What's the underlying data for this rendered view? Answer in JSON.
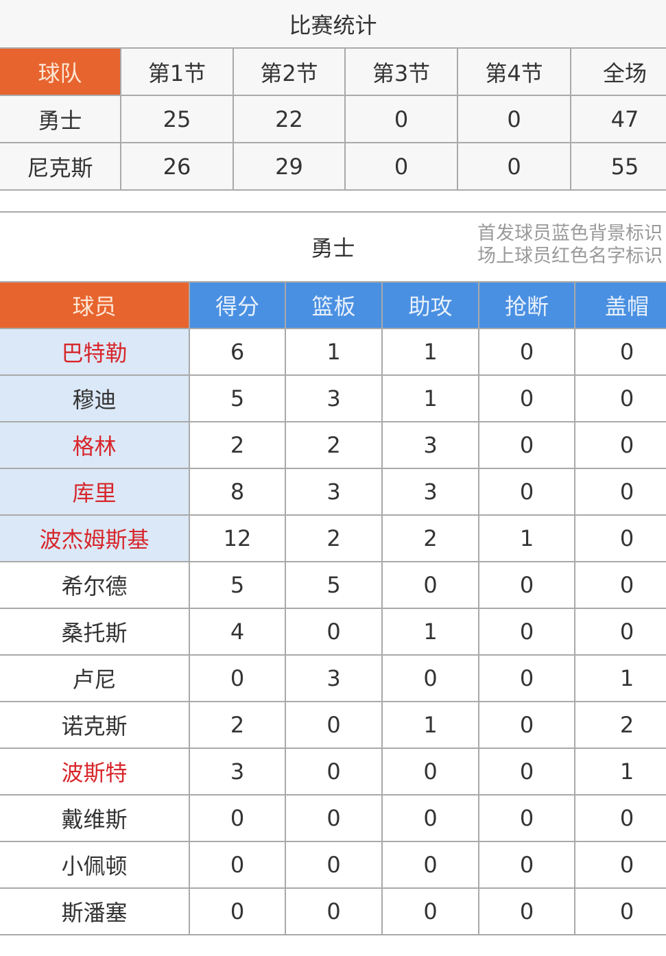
{
  "title": "比赛统计",
  "team_table": {
    "headers": [
      "球队",
      "第1节",
      "第2节",
      "第3节",
      "第4节",
      "全场"
    ],
    "rows": [
      {
        "team": "勇士",
        "scores": [
          "25",
          "22",
          "0",
          "0",
          "47"
        ]
      },
      {
        "team": "尼克斯",
        "scores": [
          "26",
          "29",
          "0",
          "0",
          "55"
        ]
      }
    ]
  },
  "player_section": {
    "team": "勇士",
    "legend_line1": "首发球员蓝色背景标识",
    "legend_line2": "场上球员红色名字标识",
    "headers": [
      "球员",
      "得分",
      "篮板",
      "助攻",
      "抢断",
      "盖帽"
    ],
    "colors": {
      "orange": "#e8642f",
      "blue": "#4a90e2",
      "starter_bg": "#dbe8f7",
      "on_court": "#d7262b"
    },
    "players": [
      {
        "name": "巴特勒",
        "starter": true,
        "on_court": true,
        "stats": [
          "6",
          "1",
          "1",
          "0",
          "0"
        ]
      },
      {
        "name": "穆迪",
        "starter": true,
        "on_court": false,
        "stats": [
          "5",
          "3",
          "1",
          "0",
          "0"
        ]
      },
      {
        "name": "格林",
        "starter": true,
        "on_court": true,
        "stats": [
          "2",
          "2",
          "3",
          "0",
          "0"
        ]
      },
      {
        "name": "库里",
        "starter": true,
        "on_court": true,
        "stats": [
          "8",
          "3",
          "3",
          "0",
          "0"
        ]
      },
      {
        "name": "波杰姆斯基",
        "starter": true,
        "on_court": true,
        "stats": [
          "12",
          "2",
          "2",
          "1",
          "0"
        ]
      },
      {
        "name": "希尔德",
        "starter": false,
        "on_court": false,
        "stats": [
          "5",
          "5",
          "0",
          "0",
          "0"
        ]
      },
      {
        "name": "桑托斯",
        "starter": false,
        "on_court": false,
        "stats": [
          "4",
          "0",
          "1",
          "0",
          "0"
        ]
      },
      {
        "name": "卢尼",
        "starter": false,
        "on_court": false,
        "stats": [
          "0",
          "3",
          "0",
          "0",
          "1"
        ]
      },
      {
        "name": "诺克斯",
        "starter": false,
        "on_court": false,
        "stats": [
          "2",
          "0",
          "1",
          "0",
          "2"
        ]
      },
      {
        "name": "波斯特",
        "starter": false,
        "on_court": true,
        "stats": [
          "3",
          "0",
          "0",
          "0",
          "1"
        ]
      },
      {
        "name": "戴维斯",
        "starter": false,
        "on_court": false,
        "stats": [
          "0",
          "0",
          "0",
          "0",
          "0"
        ]
      },
      {
        "name": "小佩顿",
        "starter": false,
        "on_court": false,
        "stats": [
          "0",
          "0",
          "0",
          "0",
          "0"
        ]
      },
      {
        "name": "斯潘塞",
        "starter": false,
        "on_court": false,
        "stats": [
          "0",
          "0",
          "0",
          "0",
          "0"
        ]
      }
    ]
  }
}
